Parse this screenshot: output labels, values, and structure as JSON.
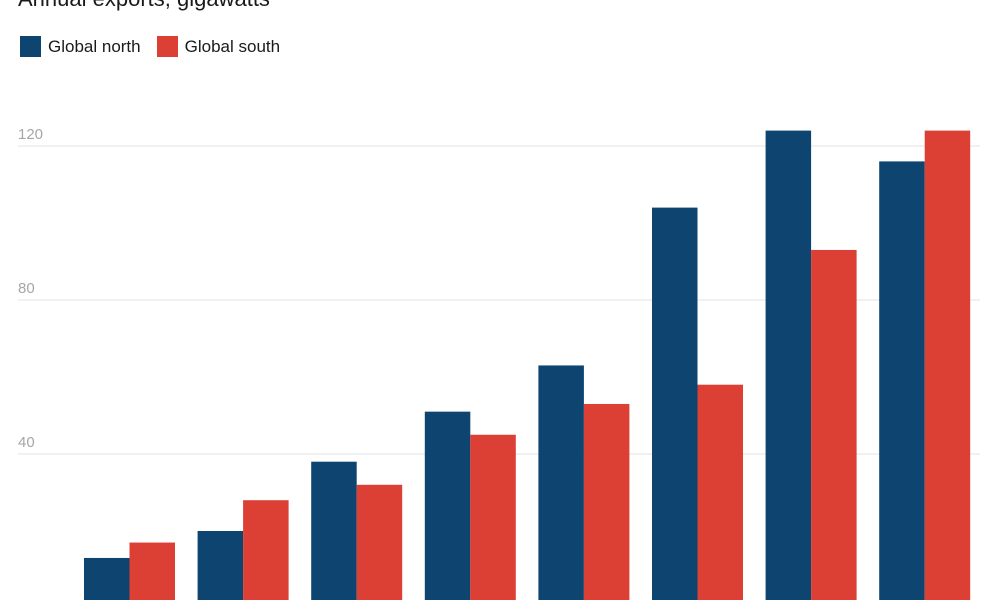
{
  "chart_data": {
    "type": "bar",
    "title": "",
    "subtitle": "Annual exports, gigawatts",
    "xlabel": "",
    "ylabel": "",
    "categories": [
      "",
      "",
      "",
      "",
      "",
      "",
      "",
      ""
    ],
    "series": [
      {
        "name": "Global north",
        "color": "#0e4470",
        "values": [
          13,
          20,
          38,
          51,
          63,
          104,
          124,
          116
        ]
      },
      {
        "name": "Global south",
        "color": "#dc3f33",
        "values": [
          17,
          28,
          32,
          45,
          53,
          58,
          93,
          124
        ]
      }
    ],
    "yticks": [
      40,
      80,
      120
    ],
    "ylim": [
      0,
      120
    ],
    "grid": true,
    "legend_position": "top-left"
  }
}
